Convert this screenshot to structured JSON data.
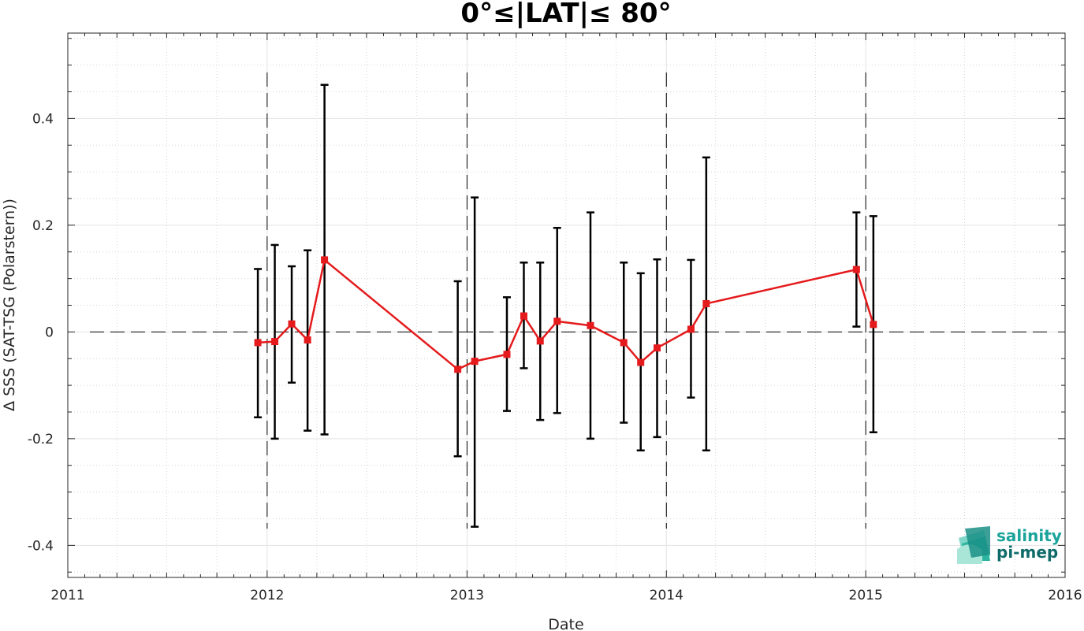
{
  "chart_data": {
    "type": "line",
    "title": "0°≤|LAT|≤ 80°",
    "xlabel": "Date",
    "ylabel": "Δ SSS (SAT-TSG (Polarstern))",
    "xlim": [
      "2011-01-01",
      "2016-01-01"
    ],
    "ylim": [
      -0.46,
      0.56
    ],
    "x_ticks": [
      "2011",
      "2012",
      "2013",
      "2014",
      "2015",
      "2016"
    ],
    "y_ticks": [
      -0.4,
      -0.2,
      0,
      0.2,
      0.4
    ],
    "y_tick_labels": [
      "-0.4",
      "-0.2",
      "0",
      "0.2",
      "0.4"
    ],
    "grid": true,
    "minor_grid": true,
    "reference_line_y": 0,
    "year_boundaries": [
      "2012-01-01",
      "2013-01-01",
      "2014-01-01",
      "2015-01-01"
    ],
    "line_color": "#e41a1c",
    "errorbar_color": "#000000",
    "series": [
      {
        "x": [
          "2011-12-15",
          "2012-01-15",
          "2012-02-15",
          "2012-03-15",
          "2012-04-15",
          "2012-12-15",
          "2013-01-15",
          "2013-03-15",
          "2013-04-15",
          "2013-05-15",
          "2013-06-15",
          "2013-08-15",
          "2013-10-15",
          "2013-11-15",
          "2013-12-15",
          "2014-02-15",
          "2014-03-15",
          "2014-12-15",
          "2015-01-15"
        ],
        "values": [
          -0.02,
          -0.018,
          0.015,
          -0.015,
          0.135,
          -0.07,
          -0.055,
          -0.042,
          0.03,
          -0.017,
          0.02,
          0.012,
          -0.02,
          -0.057,
          -0.03,
          0.005,
          0.053,
          0.117,
          0.014
        ],
        "err_low": [
          -0.16,
          -0.2,
          -0.095,
          -0.185,
          -0.192,
          -0.233,
          -0.365,
          -0.148,
          -0.068,
          -0.165,
          -0.152,
          -0.2,
          -0.17,
          -0.222,
          -0.197,
          -0.123,
          -0.222,
          0.01,
          -0.188
        ],
        "err_high": [
          0.118,
          0.163,
          0.123,
          0.153,
          0.463,
          0.095,
          0.252,
          0.065,
          0.13,
          0.13,
          0.195,
          0.224,
          0.13,
          0.11,
          0.136,
          0.135,
          0.327,
          0.224,
          0.217
        ]
      }
    ]
  },
  "logo": {
    "line1": "salinity",
    "line2": "pi-mep"
  },
  "colors": {
    "logo_teal": "#1aa39a",
    "logo_dark": "#0f6b6a"
  }
}
